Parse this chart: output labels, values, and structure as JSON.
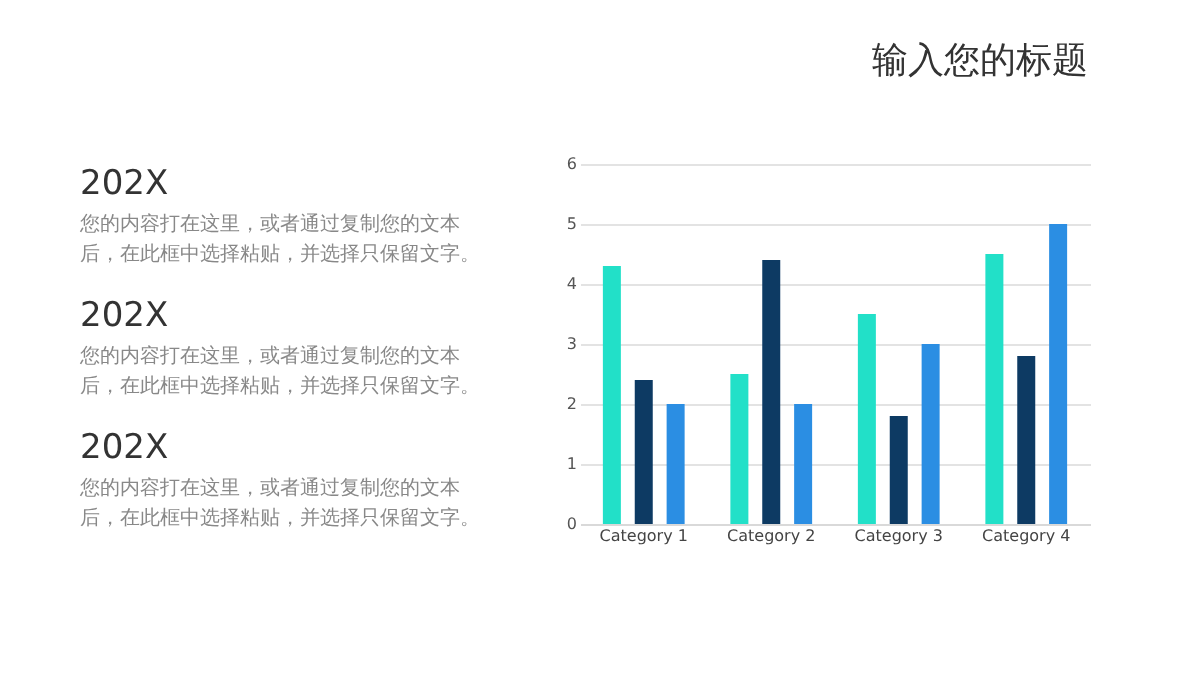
{
  "chart_data": {
    "type": "bar",
    "title": "输入您的标题",
    "categories": [
      "Category 1",
      "Category 2",
      "Category 3",
      "Category 4"
    ],
    "series": [
      {
        "color": "#22e0c8",
        "values": [
          4.3,
          2.5,
          3.5,
          4.5
        ]
      },
      {
        "color": "#0d3a63",
        "values": [
          2.4,
          4.4,
          1.8,
          2.8
        ]
      },
      {
        "color": "#2b8ee3",
        "values": [
          2,
          2,
          3,
          5
        ]
      }
    ],
    "ylim": [
      0,
      6
    ],
    "yticks": [
      0,
      1,
      2,
      3,
      4,
      5,
      6
    ],
    "grid": "y",
    "legend": false,
    "annotations": [
      "202X",
      "您的内容打在这里，或者通过复制您的文本",
      "后，在此框中选择粘贴，并选择只保留文字。",
      "202X",
      "您的内容打在这里，或者通过复制您的文本",
      "后，在此框中选择粘贴，并选择只保留文字。",
      "202X",
      "您的内容打在这里，或者通过复制您的文本",
      "后，在此框中选择粘贴，并选择只保留文字。"
    ]
  }
}
